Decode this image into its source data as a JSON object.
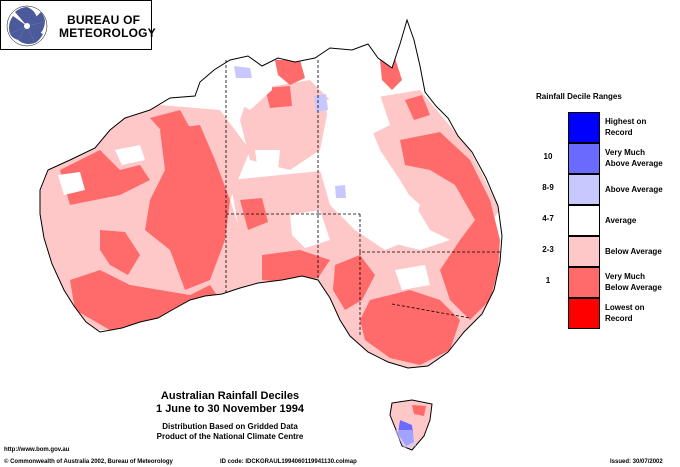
{
  "logo": {
    "line1": "BUREAU OF",
    "line2": "METEOROLOGY",
    "icon": "swirl-logo-icon"
  },
  "legend": {
    "title": "Rainfall Decile Ranges",
    "items": [
      {
        "range": "",
        "label1": "Highest on",
        "label2": "Record",
        "color": "#0000ff"
      },
      {
        "range": "10",
        "label1": "Very Much",
        "label2": "Above Average",
        "color": "#6a6aff"
      },
      {
        "range": "8-9",
        "label1": "Above Average",
        "label2": "",
        "color": "#c8c8ff"
      },
      {
        "range": "4-7",
        "label1": "Average",
        "label2": "",
        "color": "#ffffff"
      },
      {
        "range": "2-3",
        "label1": "Below Average",
        "label2": "",
        "color": "#ffc8c8"
      },
      {
        "range": "1",
        "label1": "Very Much",
        "label2": "Below Average",
        "color": "#ff6a6a"
      },
      {
        "range": "",
        "label1": "Lowest on",
        "label2": "Record",
        "color": "#ff0000"
      }
    ]
  },
  "caption": {
    "title1": "Australian Rainfall Deciles",
    "title2": "1 June to 30 November 1994",
    "line3": "Distribution Based on Gridded Data",
    "line4": "Product of the National Climate Centre"
  },
  "footer": {
    "url": "http://www.bom.gov.au",
    "copyright": "© Commonwealth of Australia 2002, Bureau of Meteorology",
    "product_id": "ID code: IDCKGRAUL1994060119941130.colmap",
    "issued": "Issued: 30/07/2002"
  },
  "colors": {
    "below_average": "#ffc8c8",
    "very_much_below": "#ff6a6a",
    "above_average": "#c8c8ff",
    "very_much_above": "#6a6aff",
    "average": "#ffffff"
  }
}
